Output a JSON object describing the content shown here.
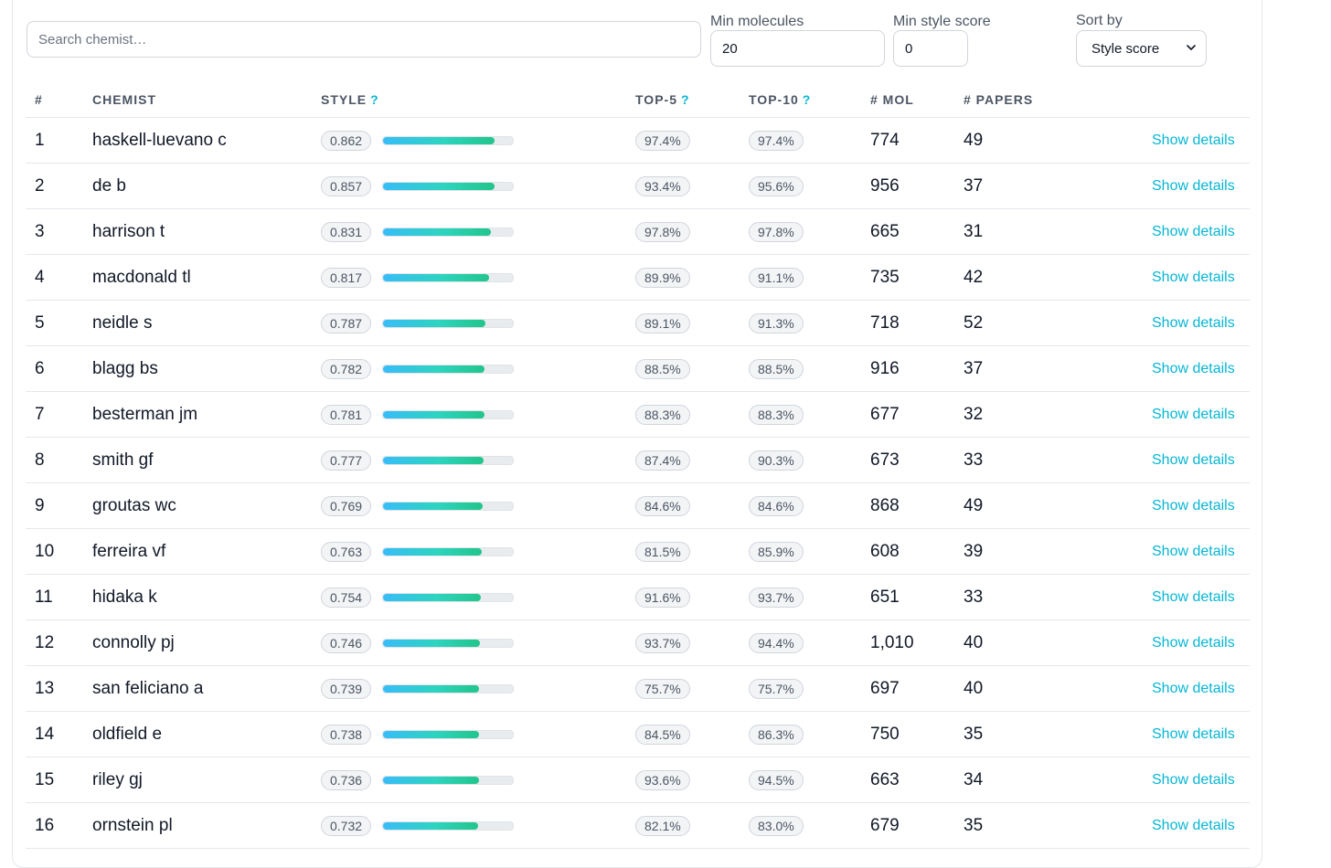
{
  "filters": {
    "search_placeholder": "Search chemist…",
    "min_molecules_label": "Min molecules",
    "min_molecules_value": "20",
    "min_style_label": "Min style score",
    "min_style_value": "0",
    "sort_label": "Sort by",
    "sort_value": "Style score"
  },
  "table": {
    "headers": {
      "rank": "#",
      "chemist": "CHEMIST",
      "style": "STYLE",
      "top5": "TOP-5",
      "top10": "TOP-10",
      "mol": "# MOL",
      "papers": "# PAPERS",
      "help_mark": "?"
    },
    "details_label": "Show details",
    "rows": [
      {
        "rank": "1",
        "chemist": "haskell-luevano c",
        "style": "0.862",
        "style_value": 0.862,
        "top5": "97.4%",
        "top10": "97.4%",
        "mol": "774",
        "papers": "49"
      },
      {
        "rank": "2",
        "chemist": "de b",
        "style": "0.857",
        "style_value": 0.857,
        "top5": "93.4%",
        "top10": "95.6%",
        "mol": "956",
        "papers": "37"
      },
      {
        "rank": "3",
        "chemist": "harrison t",
        "style": "0.831",
        "style_value": 0.831,
        "top5": "97.8%",
        "top10": "97.8%",
        "mol": "665",
        "papers": "31"
      },
      {
        "rank": "4",
        "chemist": "macdonald tl",
        "style": "0.817",
        "style_value": 0.817,
        "top5": "89.9%",
        "top10": "91.1%",
        "mol": "735",
        "papers": "42"
      },
      {
        "rank": "5",
        "chemist": "neidle s",
        "style": "0.787",
        "style_value": 0.787,
        "top5": "89.1%",
        "top10": "91.3%",
        "mol": "718",
        "papers": "52"
      },
      {
        "rank": "6",
        "chemist": "blagg bs",
        "style": "0.782",
        "style_value": 0.782,
        "top5": "88.5%",
        "top10": "88.5%",
        "mol": "916",
        "papers": "37"
      },
      {
        "rank": "7",
        "chemist": "besterman jm",
        "style": "0.781",
        "style_value": 0.781,
        "top5": "88.3%",
        "top10": "88.3%",
        "mol": "677",
        "papers": "32"
      },
      {
        "rank": "8",
        "chemist": "smith gf",
        "style": "0.777",
        "style_value": 0.777,
        "top5": "87.4%",
        "top10": "90.3%",
        "mol": "673",
        "papers": "33"
      },
      {
        "rank": "9",
        "chemist": "groutas wc",
        "style": "0.769",
        "style_value": 0.769,
        "top5": "84.6%",
        "top10": "84.6%",
        "mol": "868",
        "papers": "49"
      },
      {
        "rank": "10",
        "chemist": "ferreira vf",
        "style": "0.763",
        "style_value": 0.763,
        "top5": "81.5%",
        "top10": "85.9%",
        "mol": "608",
        "papers": "39"
      },
      {
        "rank": "11",
        "chemist": "hidaka k",
        "style": "0.754",
        "style_value": 0.754,
        "top5": "91.6%",
        "top10": "93.7%",
        "mol": "651",
        "papers": "33"
      },
      {
        "rank": "12",
        "chemist": "connolly pj",
        "style": "0.746",
        "style_value": 0.746,
        "top5": "93.7%",
        "top10": "94.4%",
        "mol": "1,010",
        "papers": "40"
      },
      {
        "rank": "13",
        "chemist": "san feliciano a",
        "style": "0.739",
        "style_value": 0.739,
        "top5": "75.7%",
        "top10": "75.7%",
        "mol": "697",
        "papers": "40"
      },
      {
        "rank": "14",
        "chemist": "oldfield e",
        "style": "0.738",
        "style_value": 0.738,
        "top5": "84.5%",
        "top10": "86.3%",
        "mol": "750",
        "papers": "35"
      },
      {
        "rank": "15",
        "chemist": "riley gj",
        "style": "0.736",
        "style_value": 0.736,
        "top5": "93.6%",
        "top10": "94.5%",
        "mol": "663",
        "papers": "34"
      },
      {
        "rank": "16",
        "chemist": "ornstein pl",
        "style": "0.732",
        "style_value": 0.732,
        "top5": "82.1%",
        "top10": "83.0%",
        "mol": "679",
        "papers": "35"
      }
    ]
  }
}
